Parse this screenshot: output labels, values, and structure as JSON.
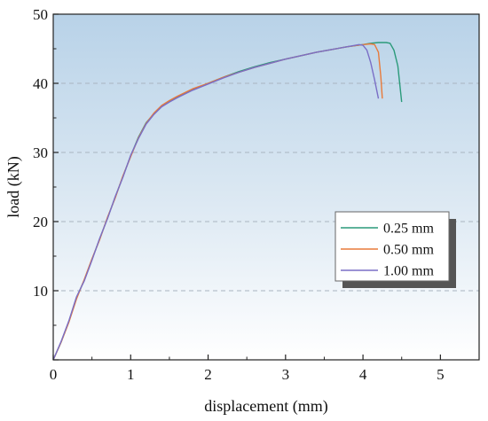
{
  "chart_data": {
    "type": "line",
    "xlabel": "displacement (mm)",
    "ylabel": "load (kN)",
    "xlim": [
      0,
      5.5
    ],
    "ylim": [
      0,
      50
    ],
    "x_ticks": [
      "0",
      "1",
      "2",
      "3",
      "4",
      "5"
    ],
    "y_ticks": [
      "10",
      "20",
      "30",
      "40",
      "50"
    ],
    "grid": "horizontal dashed at y = 10, 20, 30, 40",
    "legend_position": "right, below middle",
    "background": "blue-to-white vertical gradient",
    "series": [
      {
        "name": "0.25 mm",
        "color": "#2a9a7a",
        "points": [
          [
            0,
            0
          ],
          [
            0.1,
            2.5
          ],
          [
            0.2,
            5.5
          ],
          [
            0.3,
            9
          ],
          [
            0.4,
            11.5
          ],
          [
            0.5,
            14.5
          ],
          [
            0.6,
            17.5
          ],
          [
            0.7,
            20.5
          ],
          [
            0.8,
            23.5
          ],
          [
            0.9,
            26.5
          ],
          [
            1.0,
            29.5
          ],
          [
            1.1,
            32.2
          ],
          [
            1.2,
            34.3
          ],
          [
            1.3,
            35.6
          ],
          [
            1.4,
            36.7
          ],
          [
            1.5,
            37.4
          ],
          [
            1.6,
            38
          ],
          [
            1.8,
            39.1
          ],
          [
            2.0,
            40
          ],
          [
            2.2,
            40.9
          ],
          [
            2.4,
            41.7
          ],
          [
            2.6,
            42.4
          ],
          [
            2.8,
            43
          ],
          [
            3.0,
            43.5
          ],
          [
            3.2,
            44
          ],
          [
            3.4,
            44.5
          ],
          [
            3.6,
            44.9
          ],
          [
            3.8,
            45.3
          ],
          [
            4.0,
            45.6
          ],
          [
            4.1,
            45.8
          ],
          [
            4.2,
            45.9
          ],
          [
            4.3,
            45.9
          ],
          [
            4.35,
            45.8
          ],
          [
            4.4,
            44.8
          ],
          [
            4.45,
            42.5
          ],
          [
            4.5,
            37.3
          ]
        ]
      },
      {
        "name": "0.50 mm",
        "color": "#e87a3a",
        "points": [
          [
            0,
            0
          ],
          [
            0.1,
            2.5
          ],
          [
            0.2,
            5.4
          ],
          [
            0.3,
            8.8
          ],
          [
            0.4,
            11.6
          ],
          [
            0.5,
            14.6
          ],
          [
            0.6,
            17.4
          ],
          [
            0.7,
            20.6
          ],
          [
            0.8,
            23.4
          ],
          [
            0.9,
            26.6
          ],
          [
            1.0,
            29.4
          ],
          [
            1.1,
            32.1
          ],
          [
            1.2,
            34.2
          ],
          [
            1.3,
            35.7
          ],
          [
            1.4,
            36.8
          ],
          [
            1.5,
            37.5
          ],
          [
            1.6,
            38.1
          ],
          [
            1.8,
            39.2
          ],
          [
            2.0,
            40
          ],
          [
            2.2,
            40.9
          ],
          [
            2.4,
            41.6
          ],
          [
            2.6,
            42.3
          ],
          [
            2.8,
            42.9
          ],
          [
            3.0,
            43.5
          ],
          [
            3.2,
            44
          ],
          [
            3.4,
            44.5
          ],
          [
            3.6,
            44.9
          ],
          [
            3.8,
            45.3
          ],
          [
            4.0,
            45.6
          ],
          [
            4.1,
            45.7
          ],
          [
            4.15,
            45.6
          ],
          [
            4.2,
            44.5
          ],
          [
            4.23,
            41
          ],
          [
            4.25,
            37.8
          ]
        ]
      },
      {
        "name": "1.00 mm",
        "color": "#7a6ec6",
        "points": [
          [
            0,
            0
          ],
          [
            0.1,
            2.6
          ],
          [
            0.2,
            5.6
          ],
          [
            0.3,
            9.1
          ],
          [
            0.4,
            11.4
          ],
          [
            0.5,
            14.4
          ],
          [
            0.6,
            17.6
          ],
          [
            0.7,
            20.4
          ],
          [
            0.8,
            23.6
          ],
          [
            0.9,
            26.4
          ],
          [
            1.0,
            29.6
          ],
          [
            1.1,
            32
          ],
          [
            1.2,
            34.1
          ],
          [
            1.3,
            35.5
          ],
          [
            1.4,
            36.6
          ],
          [
            1.5,
            37.3
          ],
          [
            1.6,
            37.9
          ],
          [
            1.8,
            39
          ],
          [
            2.0,
            39.9
          ],
          [
            2.2,
            40.8
          ],
          [
            2.4,
            41.6
          ],
          [
            2.6,
            42.3
          ],
          [
            2.8,
            42.9
          ],
          [
            3.0,
            43.5
          ],
          [
            3.2,
            44
          ],
          [
            3.4,
            44.5
          ],
          [
            3.6,
            44.9
          ],
          [
            3.8,
            45.3
          ],
          [
            3.95,
            45.6
          ],
          [
            4.0,
            45.5
          ],
          [
            4.05,
            44.8
          ],
          [
            4.1,
            43
          ],
          [
            4.15,
            40.5
          ],
          [
            4.2,
            37.8
          ]
        ]
      }
    ]
  }
}
